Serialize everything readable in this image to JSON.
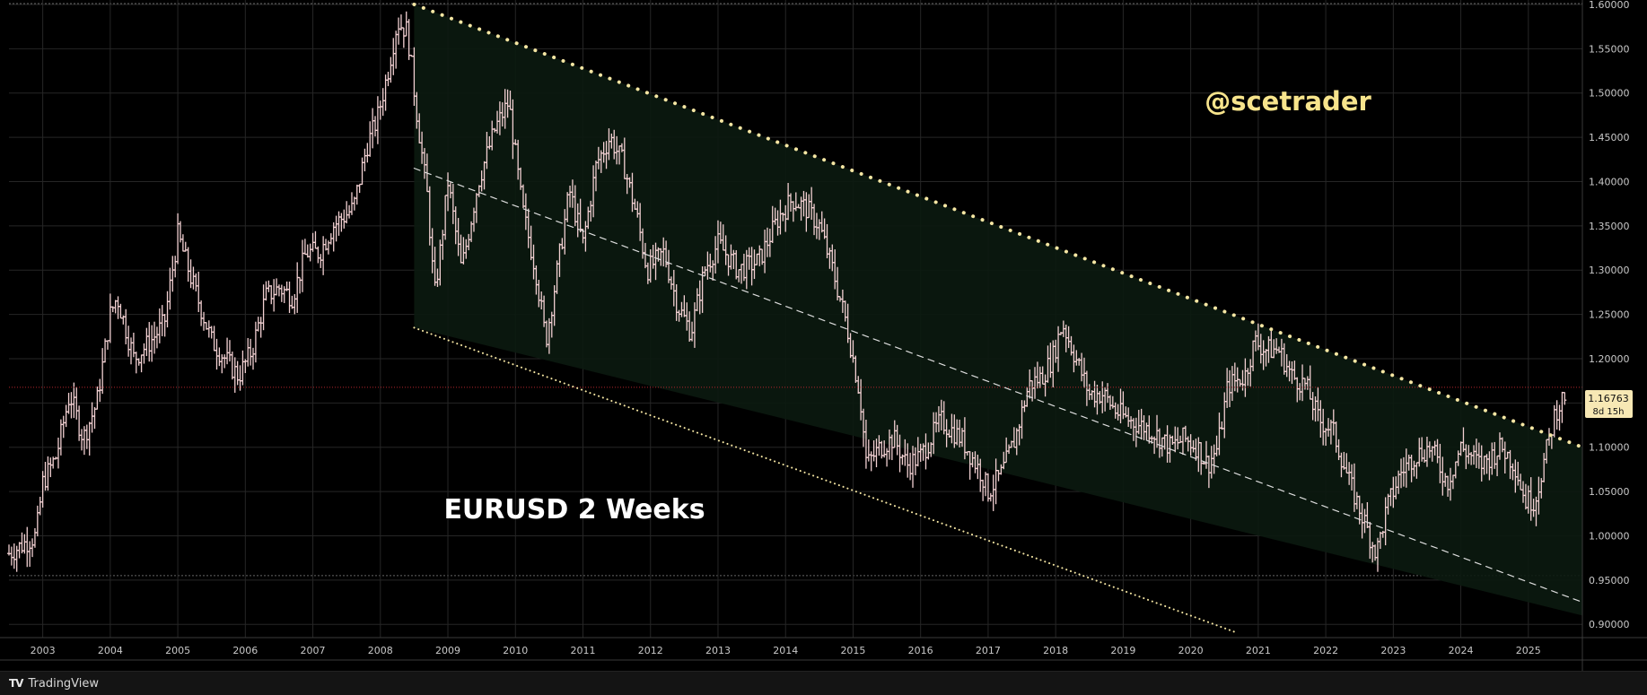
{
  "footer": {
    "brand": "TradingView",
    "logo_icon": "tradingview-logo-icon"
  },
  "watermark": "@scetrader",
  "colors": {
    "background": "#000000",
    "grid": "#262626",
    "bars": "#f2d0d2",
    "trend_line": "#f5e6a3",
    "watermark": "#f7e48c",
    "channel_fill": "#0b1a10",
    "price_line": "#b3262e",
    "axis_text": "#c8c8c8",
    "price_tag_bg": "#f7e8b4",
    "price_tag_text": "#111111"
  },
  "chart_data": {
    "type": "ohlc",
    "title": "EURUSD 2 Weeks",
    "symbol": "EURUSD",
    "interval": "2 Weeks",
    "y_ticks": [
      "1.60000",
      "1.55000",
      "1.50000",
      "1.45000",
      "1.40000",
      "1.35000",
      "1.30000",
      "1.25000",
      "1.20000",
      "1.15000",
      "1.10000",
      "1.05000",
      "1.00000",
      "0.95000",
      "0.90000"
    ],
    "x_ticks": [
      "2003",
      "2004",
      "2005",
      "2006",
      "2007",
      "2008",
      "2009",
      "2010",
      "2011",
      "2012",
      "2013",
      "2014",
      "2015",
      "2016",
      "2017",
      "2018",
      "2019",
      "2020",
      "2021",
      "2022",
      "2023",
      "2024",
      "2025"
    ],
    "ylim": [
      0.885,
      1.605
    ],
    "xlim": [
      2002.5,
      2025.8
    ],
    "last_price": "1.16763",
    "countdown": "8d 15h",
    "price_path": [
      [
        2002.5,
        0.98
      ],
      [
        2002.9,
        1.0
      ],
      [
        2003.0,
        1.06
      ],
      [
        2003.2,
        1.09
      ],
      [
        2003.4,
        1.16
      ],
      [
        2003.6,
        1.11
      ],
      [
        2003.8,
        1.15
      ],
      [
        2004.0,
        1.25
      ],
      [
        2004.1,
        1.27
      ],
      [
        2004.35,
        1.2
      ],
      [
        2004.6,
        1.22
      ],
      [
        2004.8,
        1.24
      ],
      [
        2005.0,
        1.34
      ],
      [
        2005.2,
        1.29
      ],
      [
        2005.5,
        1.22
      ],
      [
        2005.7,
        1.2
      ],
      [
        2005.9,
        1.18
      ],
      [
        2006.1,
        1.21
      ],
      [
        2006.3,
        1.27
      ],
      [
        2006.5,
        1.28
      ],
      [
        2006.7,
        1.27
      ],
      [
        2006.9,
        1.32
      ],
      [
        2007.1,
        1.32
      ],
      [
        2007.3,
        1.35
      ],
      [
        2007.6,
        1.37
      ],
      [
        2007.8,
        1.44
      ],
      [
        2007.95,
        1.47
      ],
      [
        2008.1,
        1.52
      ],
      [
        2008.25,
        1.58
      ],
      [
        2008.4,
        1.57
      ],
      [
        2008.55,
        1.47
      ],
      [
        2008.7,
        1.38
      ],
      [
        2008.8,
        1.27
      ],
      [
        2008.9,
        1.33
      ],
      [
        2009.0,
        1.4
      ],
      [
        2009.2,
        1.3
      ],
      [
        2009.45,
        1.4
      ],
      [
        2009.7,
        1.46
      ],
      [
        2009.9,
        1.49
      ],
      [
        2010.1,
        1.37
      ],
      [
        2010.3,
        1.3
      ],
      [
        2010.45,
        1.22
      ],
      [
        2010.6,
        1.29
      ],
      [
        2010.8,
        1.39
      ],
      [
        2011.0,
        1.33
      ],
      [
        2011.2,
        1.42
      ],
      [
        2011.4,
        1.45
      ],
      [
        2011.6,
        1.42
      ],
      [
        2011.8,
        1.36
      ],
      [
        2011.95,
        1.3
      ],
      [
        2012.2,
        1.32
      ],
      [
        2012.4,
        1.26
      ],
      [
        2012.6,
        1.23
      ],
      [
        2012.8,
        1.3
      ],
      [
        2013.0,
        1.33
      ],
      [
        2013.3,
        1.3
      ],
      [
        2013.6,
        1.31
      ],
      [
        2013.9,
        1.36
      ],
      [
        2014.1,
        1.38
      ],
      [
        2014.3,
        1.37
      ],
      [
        2014.5,
        1.35
      ],
      [
        2014.7,
        1.3
      ],
      [
        2014.9,
        1.24
      ],
      [
        2015.1,
        1.16
      ],
      [
        2015.2,
        1.08
      ],
      [
        2015.4,
        1.1
      ],
      [
        2015.6,
        1.11
      ],
      [
        2015.8,
        1.08
      ],
      [
        2016.0,
        1.09
      ],
      [
        2016.3,
        1.13
      ],
      [
        2016.6,
        1.11
      ],
      [
        2016.9,
        1.07
      ],
      [
        2017.0,
        1.05
      ],
      [
        2017.2,
        1.07
      ],
      [
        2017.4,
        1.11
      ],
      [
        2017.6,
        1.17
      ],
      [
        2017.8,
        1.18
      ],
      [
        2017.95,
        1.2
      ],
      [
        2018.1,
        1.24
      ],
      [
        2018.3,
        1.2
      ],
      [
        2018.5,
        1.16
      ],
      [
        2018.7,
        1.16
      ],
      [
        2018.9,
        1.14
      ],
      [
        2019.1,
        1.13
      ],
      [
        2019.4,
        1.12
      ],
      [
        2019.7,
        1.1
      ],
      [
        2019.9,
        1.11
      ],
      [
        2020.1,
        1.1
      ],
      [
        2020.25,
        1.08
      ],
      [
        2020.4,
        1.1
      ],
      [
        2020.55,
        1.17
      ],
      [
        2020.8,
        1.18
      ],
      [
        2020.95,
        1.22
      ],
      [
        2021.1,
        1.21
      ],
      [
        2021.3,
        1.21
      ],
      [
        2021.5,
        1.18
      ],
      [
        2021.7,
        1.17
      ],
      [
        2021.9,
        1.13
      ],
      [
        2022.1,
        1.12
      ],
      [
        2022.35,
        1.06
      ],
      [
        2022.55,
        1.02
      ],
      [
        2022.75,
        0.98
      ],
      [
        2022.9,
        1.03
      ],
      [
        2023.1,
        1.07
      ],
      [
        2023.3,
        1.09
      ],
      [
        2023.55,
        1.1
      ],
      [
        2023.8,
        1.06
      ],
      [
        2024.0,
        1.1
      ],
      [
        2024.3,
        1.08
      ],
      [
        2024.6,
        1.1
      ],
      [
        2024.8,
        1.08
      ],
      [
        2024.95,
        1.04
      ],
      [
        2025.1,
        1.04
      ],
      [
        2025.25,
        1.09
      ],
      [
        2025.4,
        1.14
      ],
      [
        2025.55,
        1.16
      ]
    ],
    "drawings": {
      "upper_trendline": [
        [
          2008.5,
          1.6
        ],
        [
          2025.8,
          1.1
        ]
      ],
      "mid_line": [
        [
          2008.5,
          1.415
        ],
        [
          2025.8,
          0.925
        ]
      ],
      "lower_line": [
        [
          2008.5,
          1.235
        ],
        [
          2020.7,
          0.89
        ]
      ],
      "channel": [
        [
          2008.5,
          1.6
        ],
        [
          2025.8,
          1.1
        ],
        [
          2025.8,
          0.91
        ],
        [
          2008.5,
          1.235
        ]
      ]
    }
  }
}
